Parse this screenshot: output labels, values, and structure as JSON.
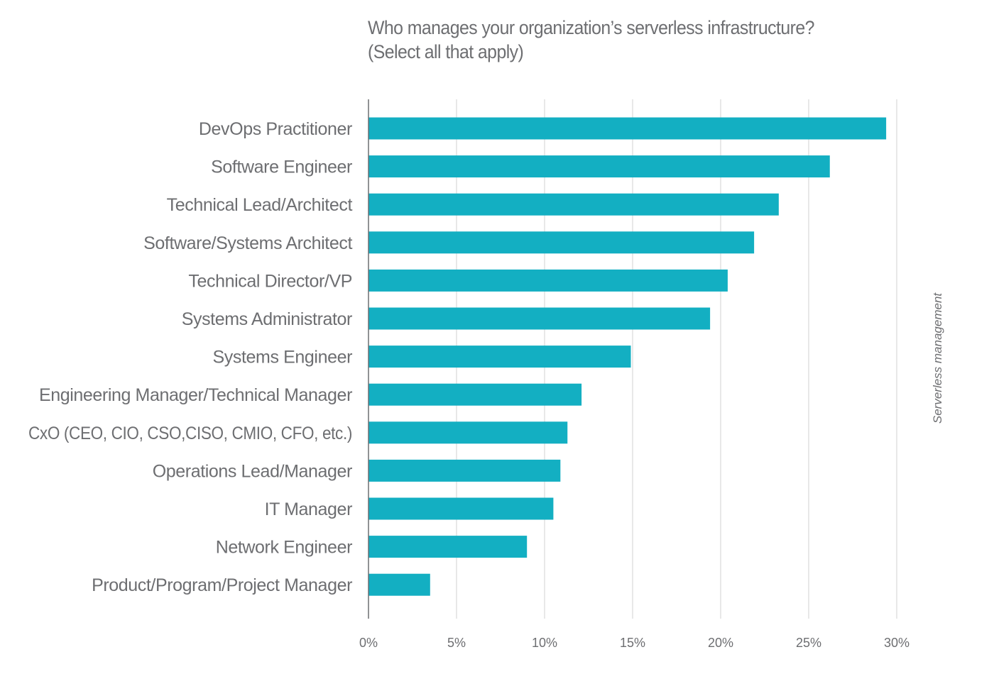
{
  "title_lines": [
    "Who manages your organization’s serverless infrastructure?",
    "(Select all that apply)"
  ],
  "side_label": "Serverless management",
  "colors": {
    "bar": "#13afc2",
    "grid": "#d9d9d9",
    "axis": "#6d6e71",
    "text": "#6d6e71"
  },
  "chart_data": {
    "type": "bar",
    "orientation": "horizontal",
    "title": "Who manages your organization’s serverless infrastructure? (Select all that apply)",
    "categories": [
      "DevOps Practitioner",
      "Software Engineer",
      "Technical Lead/Architect",
      "Software/Systems Architect",
      "Technical Director/VP",
      "Systems Administrator",
      "Systems Engineer",
      "Engineering Manager/Technical Manager",
      "CxO (CEO, CIO, CSO,CISO, CMIO, CFO, etc.)",
      "Operations Lead/Manager",
      "IT Manager",
      "Network Engineer",
      "Product/Program/Project Manager"
    ],
    "values": [
      29.4,
      26.2,
      23.3,
      21.9,
      20.4,
      19.4,
      14.9,
      12.1,
      11.3,
      10.9,
      10.5,
      9.0,
      3.5
    ],
    "xlim": [
      0,
      30
    ],
    "xticks": [
      0,
      5,
      10,
      15,
      20,
      25,
      30
    ],
    "xtick_labels": [
      "0%",
      "5%",
      "10%",
      "15%",
      "20%",
      "25%",
      "30%"
    ],
    "xlabel": "",
    "ylabel": "",
    "grid": "vertical"
  }
}
